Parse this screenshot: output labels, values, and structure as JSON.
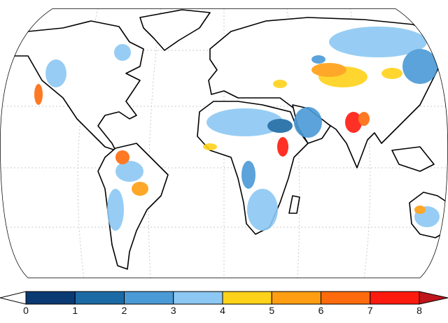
{
  "colorbar": {
    "ticks": [
      "0",
      "1",
      "2",
      "3",
      "4",
      "5",
      "6",
      "7",
      "8"
    ],
    "under_color": "#ffffff",
    "over_color": "#c0161b",
    "colors": [
      "#0b3a73",
      "#1c6aa5",
      "#4a9ad6",
      "#8cc8f3",
      "#ffd21a",
      "#ff9e12",
      "#ff6a0c",
      "#ff1a0f"
    ]
  }
}
